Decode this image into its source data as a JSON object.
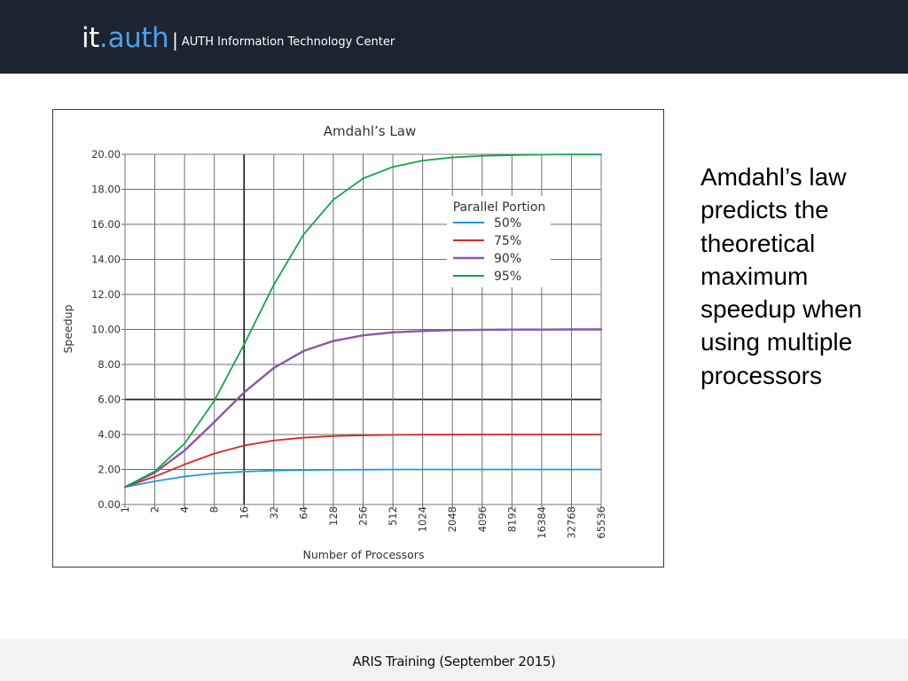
{
  "header": {
    "logo_it": "it",
    "logo_dot": ".",
    "logo_auth": "auth",
    "divider": "|",
    "subtitle": "AUTH Information Technology Center",
    "background": "#1b2430",
    "accent": "#4f9ee3"
  },
  "slide": {
    "hidden_title": "Amdahl's law",
    "side_text": "Amdahl’s law predicts the theoretical maximum speedup when using multiple processors"
  },
  "chart_data": {
    "type": "line",
    "title": "Amdahl’s Law",
    "xlabel": "Number of Processors",
    "ylabel": "Speedup",
    "x_scale": "log2",
    "categories": [
      "1",
      "2",
      "4",
      "8",
      "16",
      "32",
      "64",
      "128",
      "256",
      "512",
      "1024",
      "2048",
      "4096",
      "8192",
      "16384",
      "32768",
      "65536"
    ],
    "y_ticks": [
      "0.00",
      "2.00",
      "4.00",
      "6.00",
      "8.00",
      "10.00",
      "12.00",
      "14.00",
      "16.00",
      "18.00",
      "20.00"
    ],
    "ylim": [
      0,
      20
    ],
    "grid": true,
    "legend": {
      "title": "Parallel Portion",
      "placement": "upper-right"
    },
    "series": [
      {
        "name": "50%",
        "color": "#1f9bd5",
        "values": [
          1.0,
          1.33,
          1.6,
          1.78,
          1.88,
          1.94,
          1.97,
          1.98,
          1.99,
          2.0,
          2.0,
          2.0,
          2.0,
          2.0,
          2.0,
          2.0,
          2.0
        ]
      },
      {
        "name": "75%",
        "color": "#d62728",
        "values": [
          1.0,
          1.6,
          2.29,
          2.91,
          3.37,
          3.66,
          3.82,
          3.91,
          3.95,
          3.98,
          3.99,
          3.99,
          4.0,
          4.0,
          4.0,
          4.0,
          4.0
        ]
      },
      {
        "name": "90%",
        "color": "#8a56a8",
        "values": [
          1.0,
          1.82,
          3.08,
          4.71,
          6.4,
          7.8,
          8.77,
          9.34,
          9.66,
          9.83,
          9.91,
          9.96,
          9.98,
          9.99,
          9.99,
          10.0,
          10.0
        ]
      },
      {
        "name": "95%",
        "color": "#16a34a",
        "values": [
          1.0,
          1.9,
          3.48,
          5.93,
          9.14,
          12.55,
          15.42,
          17.41,
          18.62,
          19.28,
          19.64,
          19.82,
          19.91,
          19.95,
          19.98,
          19.99,
          19.99
        ]
      }
    ]
  },
  "footer": {
    "text": "ARIS Training (September 2015)"
  }
}
